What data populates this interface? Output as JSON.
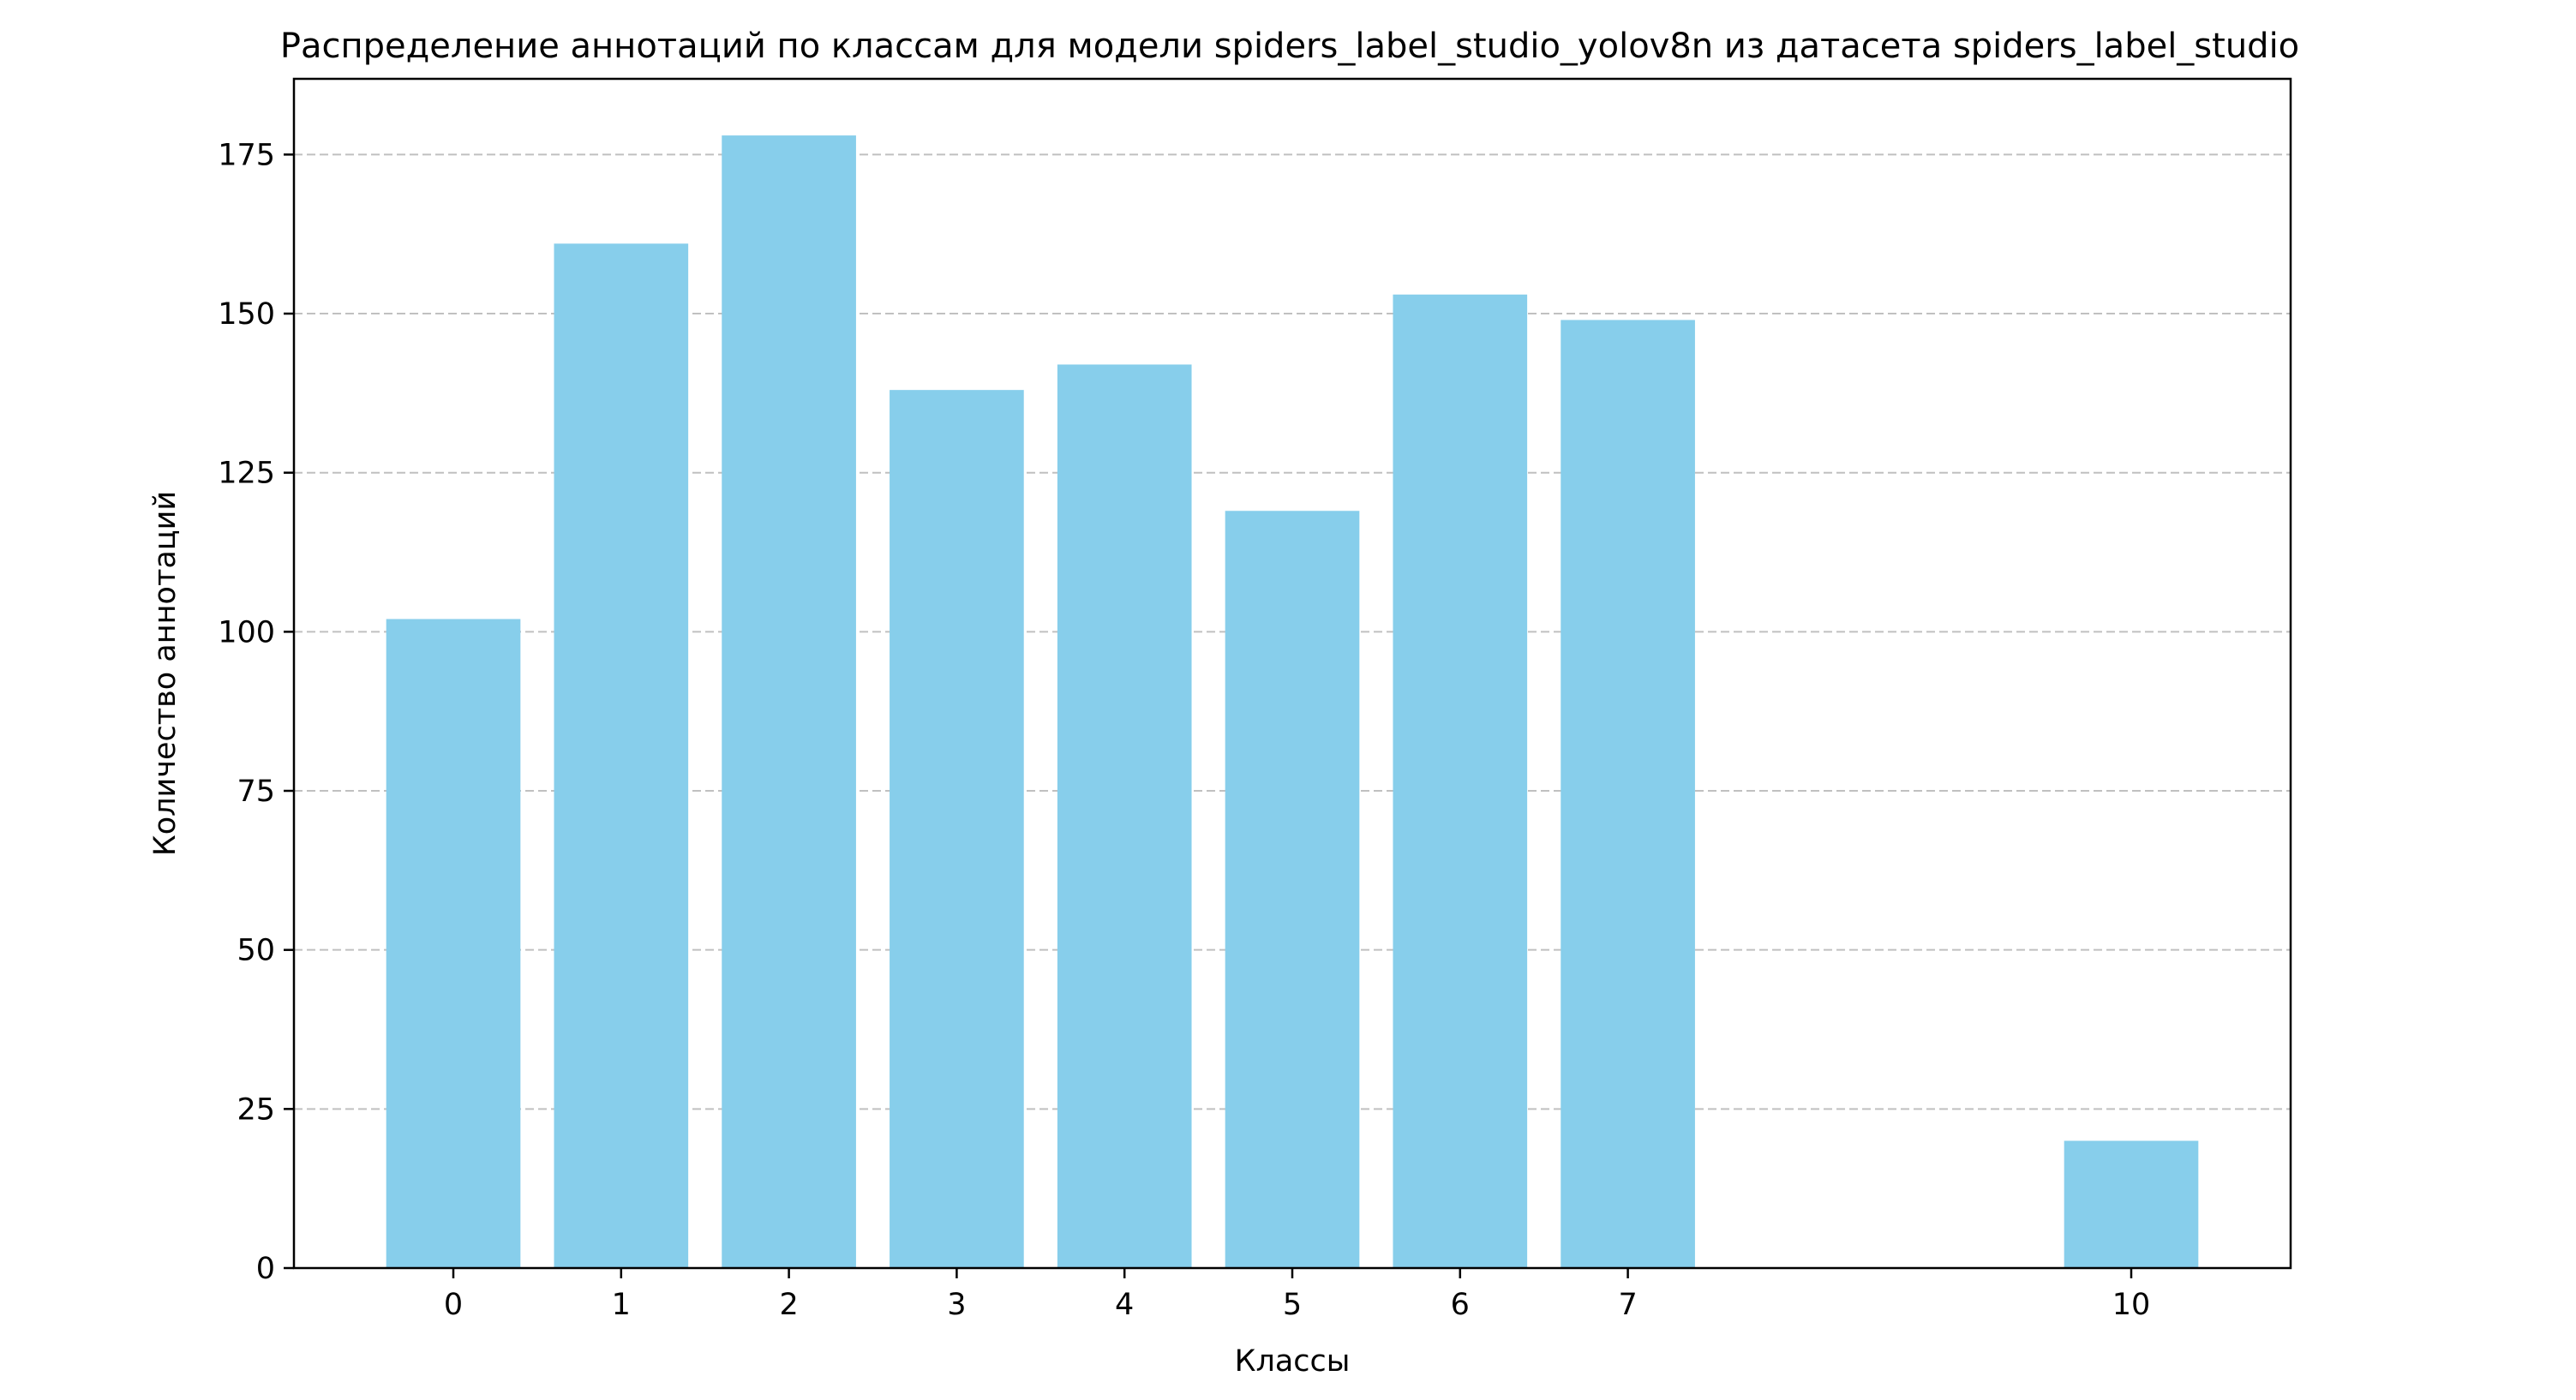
{
  "chart_data": {
    "type": "bar",
    "title": "Распределение аннотаций по классам для модели spiders_label_studio_yolov8n из датасета spiders_label_studio",
    "xlabel": "Классы",
    "ylabel": "Количество аннотаций",
    "categories": [
      "0",
      "1",
      "2",
      "3",
      "4",
      "5",
      "6",
      "7",
      "10"
    ],
    "x": [
      0,
      1,
      2,
      3,
      4,
      5,
      6,
      7,
      10
    ],
    "values": [
      102,
      161,
      178,
      138,
      142,
      119,
      153,
      149,
      20
    ],
    "xlim": [
      -0.95,
      10.95
    ],
    "ylim": [
      0,
      186.9
    ],
    "yticks": [
      0,
      25,
      50,
      75,
      100,
      125,
      150,
      175
    ],
    "grid": "y-dashed",
    "bar_color": "#87CEEB",
    "grid_color": "#c0c0c0",
    "legend": "none"
  }
}
